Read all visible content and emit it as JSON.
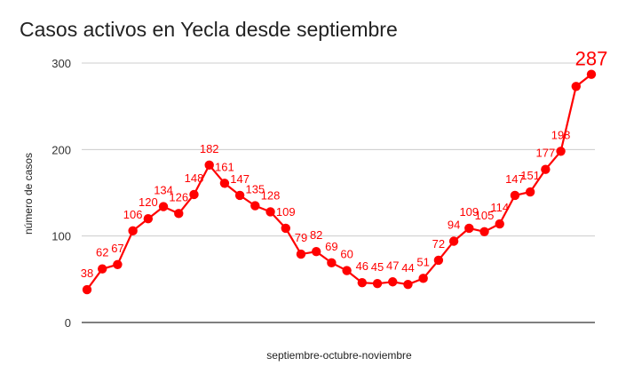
{
  "chart_data": {
    "type": "line",
    "title": "Casos activos en Yecla desde septiembre",
    "xlabel": "septiembre-octubre-noviembre",
    "ylabel": "número de casos",
    "ylim": [
      0,
      300
    ],
    "yticks": [
      0,
      100,
      200,
      300
    ],
    "grid": true,
    "legend": "none",
    "color": "#ff0000",
    "series": [
      {
        "values": [
          38,
          62,
          67,
          106,
          120,
          134,
          126,
          148,
          182,
          161,
          147,
          135,
          128,
          109,
          79,
          82,
          69,
          60,
          46,
          45,
          47,
          44,
          51,
          72,
          94,
          109,
          105,
          114,
          147,
          151,
          177,
          198,
          273,
          287
        ],
        "labels": [
          "38",
          "62",
          "67",
          "106",
          "120",
          "134",
          "126",
          "148",
          "182",
          "161",
          "147",
          "135",
          "128",
          "109",
          "79",
          "82",
          "69",
          "60",
          "46",
          "45",
          "47",
          "44",
          "51",
          "72",
          "94",
          "109",
          "105",
          "114",
          "147",
          "151",
          "177",
          "198",
          "",
          "287"
        ]
      }
    ]
  }
}
